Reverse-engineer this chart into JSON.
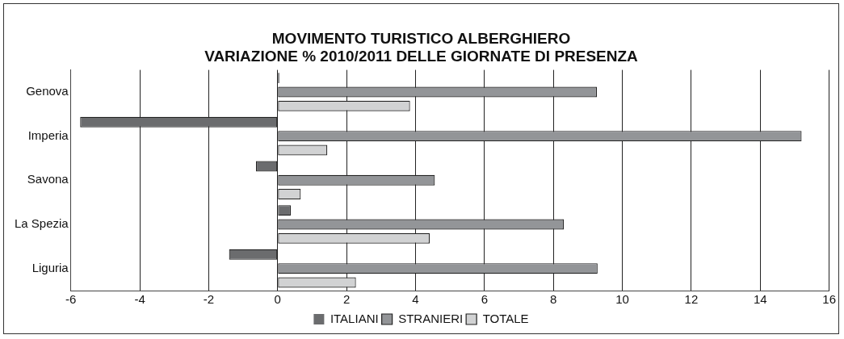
{
  "chart_data": {
    "type": "bar",
    "orientation": "horizontal",
    "title": "MOVIMENTO TURISTICO ALBERGHIERO\nVARIAZIONE % 2010/2011 DELLE GIORNATE DI PRESENZA",
    "categories": [
      "Genova",
      "Imperia",
      "Savona",
      "La Spezia",
      "Liguria"
    ],
    "series": [
      {
        "name": "ITALIANI",
        "color": "#6b6c6e",
        "values": [
          0.05,
          -5.73,
          -0.63,
          0.38,
          -1.41
        ]
      },
      {
        "name": "STRANIERI",
        "color": "#939598",
        "values": [
          9.26,
          15.2,
          4.56,
          8.3,
          9.28
        ]
      },
      {
        "name": "TOTALE",
        "color": "#d1d2d3",
        "values": [
          3.84,
          1.44,
          0.67,
          4.41,
          2.27
        ]
      }
    ],
    "xlim": [
      -6,
      16
    ],
    "xticks": [
      -6,
      -4,
      -2,
      0,
      2,
      4,
      6,
      8,
      10,
      12,
      14,
      16
    ],
    "grid": "x",
    "legend": "bottom"
  }
}
